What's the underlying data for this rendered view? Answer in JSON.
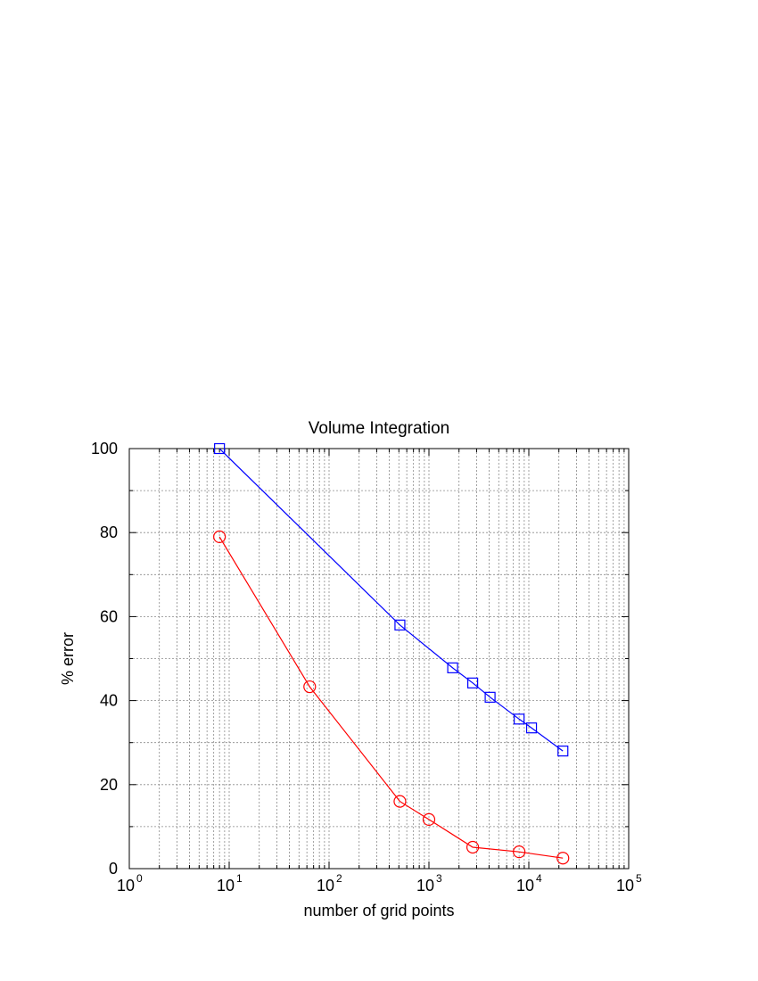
{
  "chart_data": {
    "type": "line",
    "title": "Volume Integration",
    "xlabel": "number of grid points",
    "ylabel": "% error",
    "xscale": "log",
    "xlim": [
      1,
      100000
    ],
    "ylim": [
      0,
      100
    ],
    "grid": true,
    "x_ticks": [
      {
        "base": "10",
        "exp": "0",
        "value": 1
      },
      {
        "base": "10",
        "exp": "1",
        "value": 10
      },
      {
        "base": "10",
        "exp": "2",
        "value": 100
      },
      {
        "base": "10",
        "exp": "3",
        "value": 1000
      },
      {
        "base": "10",
        "exp": "4",
        "value": 10000
      },
      {
        "base": "10",
        "exp": "5",
        "value": 100000
      }
    ],
    "y_ticks": [
      "0",
      "20",
      "40",
      "60",
      "80",
      "100"
    ],
    "series": [
      {
        "color": "#0000ff",
        "marker": "square",
        "x": [
          8,
          512,
          1728,
          2744,
          4096,
          8000,
          10648,
          21952
        ],
        "y": [
          100,
          58,
          47.8,
          44.2,
          40.8,
          35.6,
          33.5,
          28
        ]
      },
      {
        "color": "#ff0000",
        "marker": "circle",
        "x": [
          8,
          64,
          512,
          1000,
          2744,
          8000,
          21952
        ],
        "y": [
          79,
          43.3,
          16,
          11.7,
          5.1,
          4,
          2.5
        ]
      }
    ]
  }
}
